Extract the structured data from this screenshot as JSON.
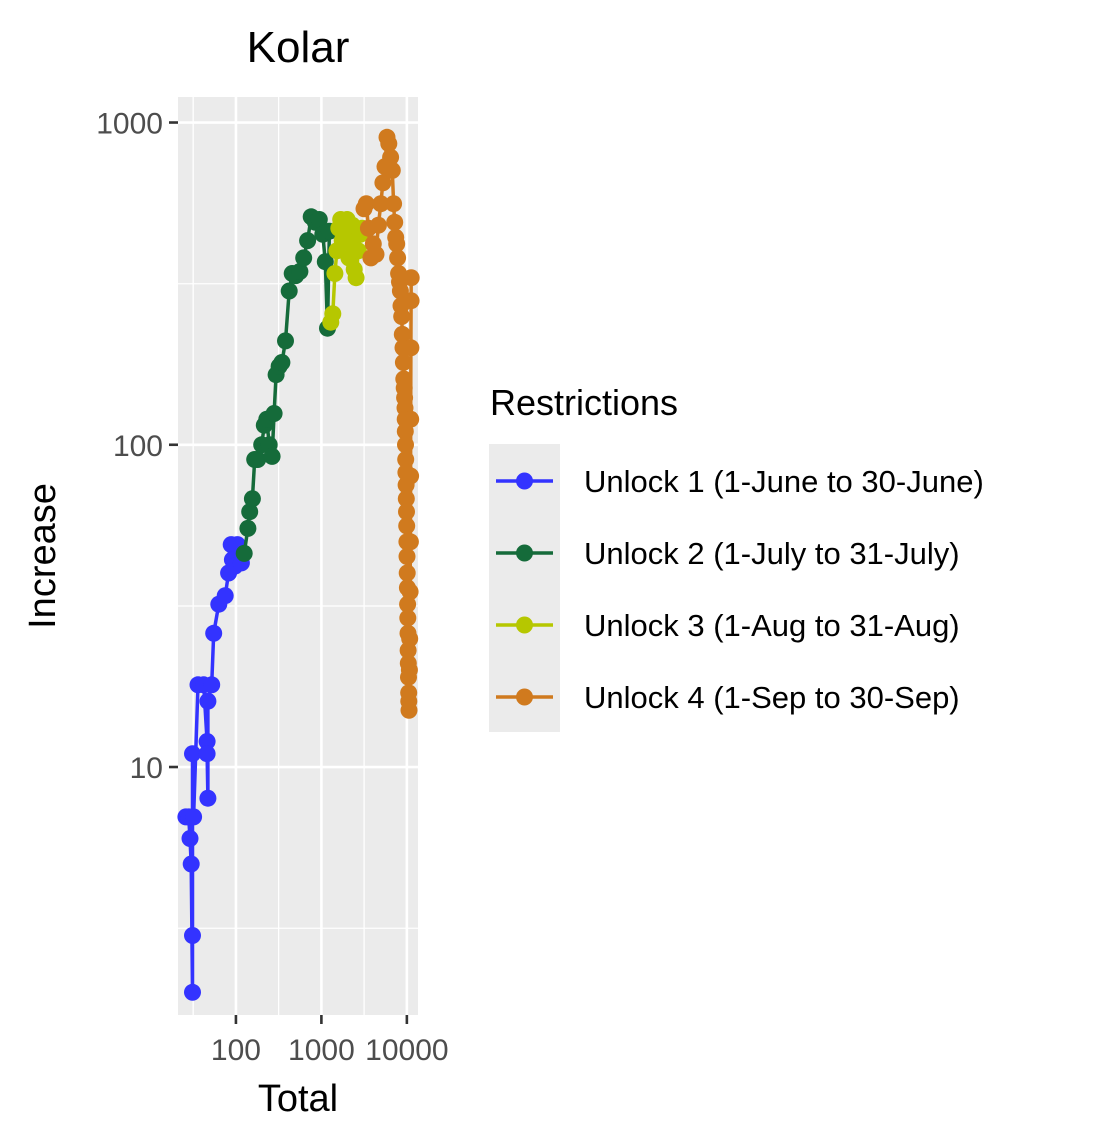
{
  "chart_data": {
    "type": "line",
    "title": "Kolar",
    "xlabel": "Total",
    "ylabel": "Increase",
    "x_scale": "log10",
    "y_scale": "log10",
    "xlim": [
      21,
      13500
    ],
    "ylim": [
      1.7,
      1200
    ],
    "x_ticks": [
      100,
      1000,
      10000
    ],
    "x_tick_labels": [
      "100",
      "1000",
      "10000"
    ],
    "y_ticks": [
      10,
      100,
      1000
    ],
    "y_tick_labels": [
      "10",
      "100",
      "1000"
    ],
    "grid": true,
    "legend": {
      "title": "Restrictions",
      "position": "right"
    },
    "series": [
      {
        "name": "Unlock 1 (1-June to 30-June)",
        "color": "#3333ff",
        "points": [
          [
            26,
            7
          ],
          [
            28,
            7
          ],
          [
            29,
            6
          ],
          [
            30,
            5
          ],
          [
            31,
            2
          ],
          [
            31,
            3
          ],
          [
            31,
            11
          ],
          [
            32,
            7
          ],
          [
            36,
            18
          ],
          [
            42,
            18
          ],
          [
            46,
            12
          ],
          [
            46,
            11
          ],
          [
            47,
            8
          ],
          [
            47,
            16
          ],
          [
            52,
            18
          ],
          [
            55,
            26
          ],
          [
            63,
            32
          ],
          [
            75,
            34
          ],
          [
            82,
            40
          ],
          [
            88,
            49
          ],
          [
            91,
            44
          ],
          [
            97,
            42
          ],
          [
            104,
            49
          ],
          [
            116,
            43
          ]
        ]
      },
      {
        "name": "Unlock 2 (1-July to 31-July)",
        "color": "#156b3a",
        "points": [
          [
            125,
            46
          ],
          [
            138,
            55
          ],
          [
            145,
            62
          ],
          [
            156,
            68
          ],
          [
            166,
            90
          ],
          [
            180,
            90
          ],
          [
            200,
            100
          ],
          [
            215,
            115
          ],
          [
            230,
            120
          ],
          [
            245,
            100
          ],
          [
            265,
            92
          ],
          [
            280,
            125
          ],
          [
            295,
            165
          ],
          [
            320,
            175
          ],
          [
            345,
            180
          ],
          [
            380,
            210
          ],
          [
            420,
            300
          ],
          [
            455,
            340
          ],
          [
            500,
            335
          ],
          [
            560,
            345
          ],
          [
            620,
            380
          ],
          [
            690,
            430
          ],
          [
            760,
            510
          ],
          [
            850,
            490
          ],
          [
            945,
            500
          ],
          [
            1040,
            450
          ],
          [
            1110,
            370
          ],
          [
            1180,
            230
          ],
          [
            1240,
            460
          ]
        ]
      },
      {
        "name": "Unlock 3 (1-Aug to 31-Aug)",
        "color": "#b6c700",
        "points": [
          [
            1290,
            240
          ],
          [
            1360,
            255
          ],
          [
            1440,
            340
          ],
          [
            1520,
            400
          ],
          [
            1600,
            470
          ],
          [
            1680,
            500
          ],
          [
            1750,
            430
          ],
          [
            1830,
            490
          ],
          [
            1920,
            460
          ],
          [
            2000,
            500
          ],
          [
            2100,
            380
          ],
          [
            2200,
            420
          ],
          [
            2300,
            480
          ],
          [
            2420,
            350
          ],
          [
            2550,
            330
          ],
          [
            2700,
            400
          ],
          [
            2850,
            450
          ],
          [
            3000,
            470
          ]
        ]
      },
      {
        "name": "Unlock 4 (1-Sep to 30-Sep)",
        "color": "#d07a1e",
        "points": [
          [
            3150,
            540
          ],
          [
            3350,
            560
          ],
          [
            3550,
            470
          ],
          [
            3800,
            380
          ],
          [
            4050,
            420
          ],
          [
            4350,
            390
          ],
          [
            4650,
            480
          ],
          [
            4950,
            560
          ],
          [
            5250,
            650
          ],
          [
            5550,
            730
          ],
          [
            5850,
            900
          ],
          [
            6150,
            860
          ],
          [
            6450,
            780
          ],
          [
            6750,
            710
          ],
          [
            7000,
            560
          ],
          [
            7200,
            490
          ],
          [
            7400,
            440
          ],
          [
            7600,
            420
          ],
          [
            7800,
            380
          ],
          [
            8000,
            340
          ],
          [
            8200,
            320
          ],
          [
            8400,
            300
          ],
          [
            8550,
            270
          ],
          [
            8700,
            250
          ],
          [
            8850,
            220
          ],
          [
            9000,
            200
          ],
          [
            9100,
            180
          ],
          [
            9200,
            160
          ],
          [
            9300,
            150
          ],
          [
            9400,
            140
          ],
          [
            9500,
            130
          ],
          [
            9550,
            120
          ],
          [
            9600,
            110
          ],
          [
            9650,
            100
          ],
          [
            9700,
            90
          ],
          [
            9750,
            82
          ],
          [
            9800,
            75
          ],
          [
            9850,
            68
          ],
          [
            9900,
            62
          ],
          [
            9950,
            56
          ],
          [
            10000,
            50
          ],
          [
            10050,
            45
          ],
          [
            10100,
            40
          ],
          [
            10150,
            36
          ],
          [
            10200,
            32
          ],
          [
            10250,
            29
          ],
          [
            10300,
            26
          ],
          [
            10350,
            23
          ],
          [
            10400,
            21
          ],
          [
            10450,
            19
          ],
          [
            10500,
            17
          ],
          [
            10550,
            16
          ],
          [
            10600,
            15
          ],
          [
            10700,
            20
          ],
          [
            10800,
            25
          ],
          [
            10900,
            35
          ],
          [
            11000,
            50
          ],
          [
            11050,
            80
          ],
          [
            11100,
            120
          ],
          [
            11150,
            200
          ],
          [
            11200,
            280
          ],
          [
            11250,
            330
          ]
        ]
      }
    ]
  }
}
